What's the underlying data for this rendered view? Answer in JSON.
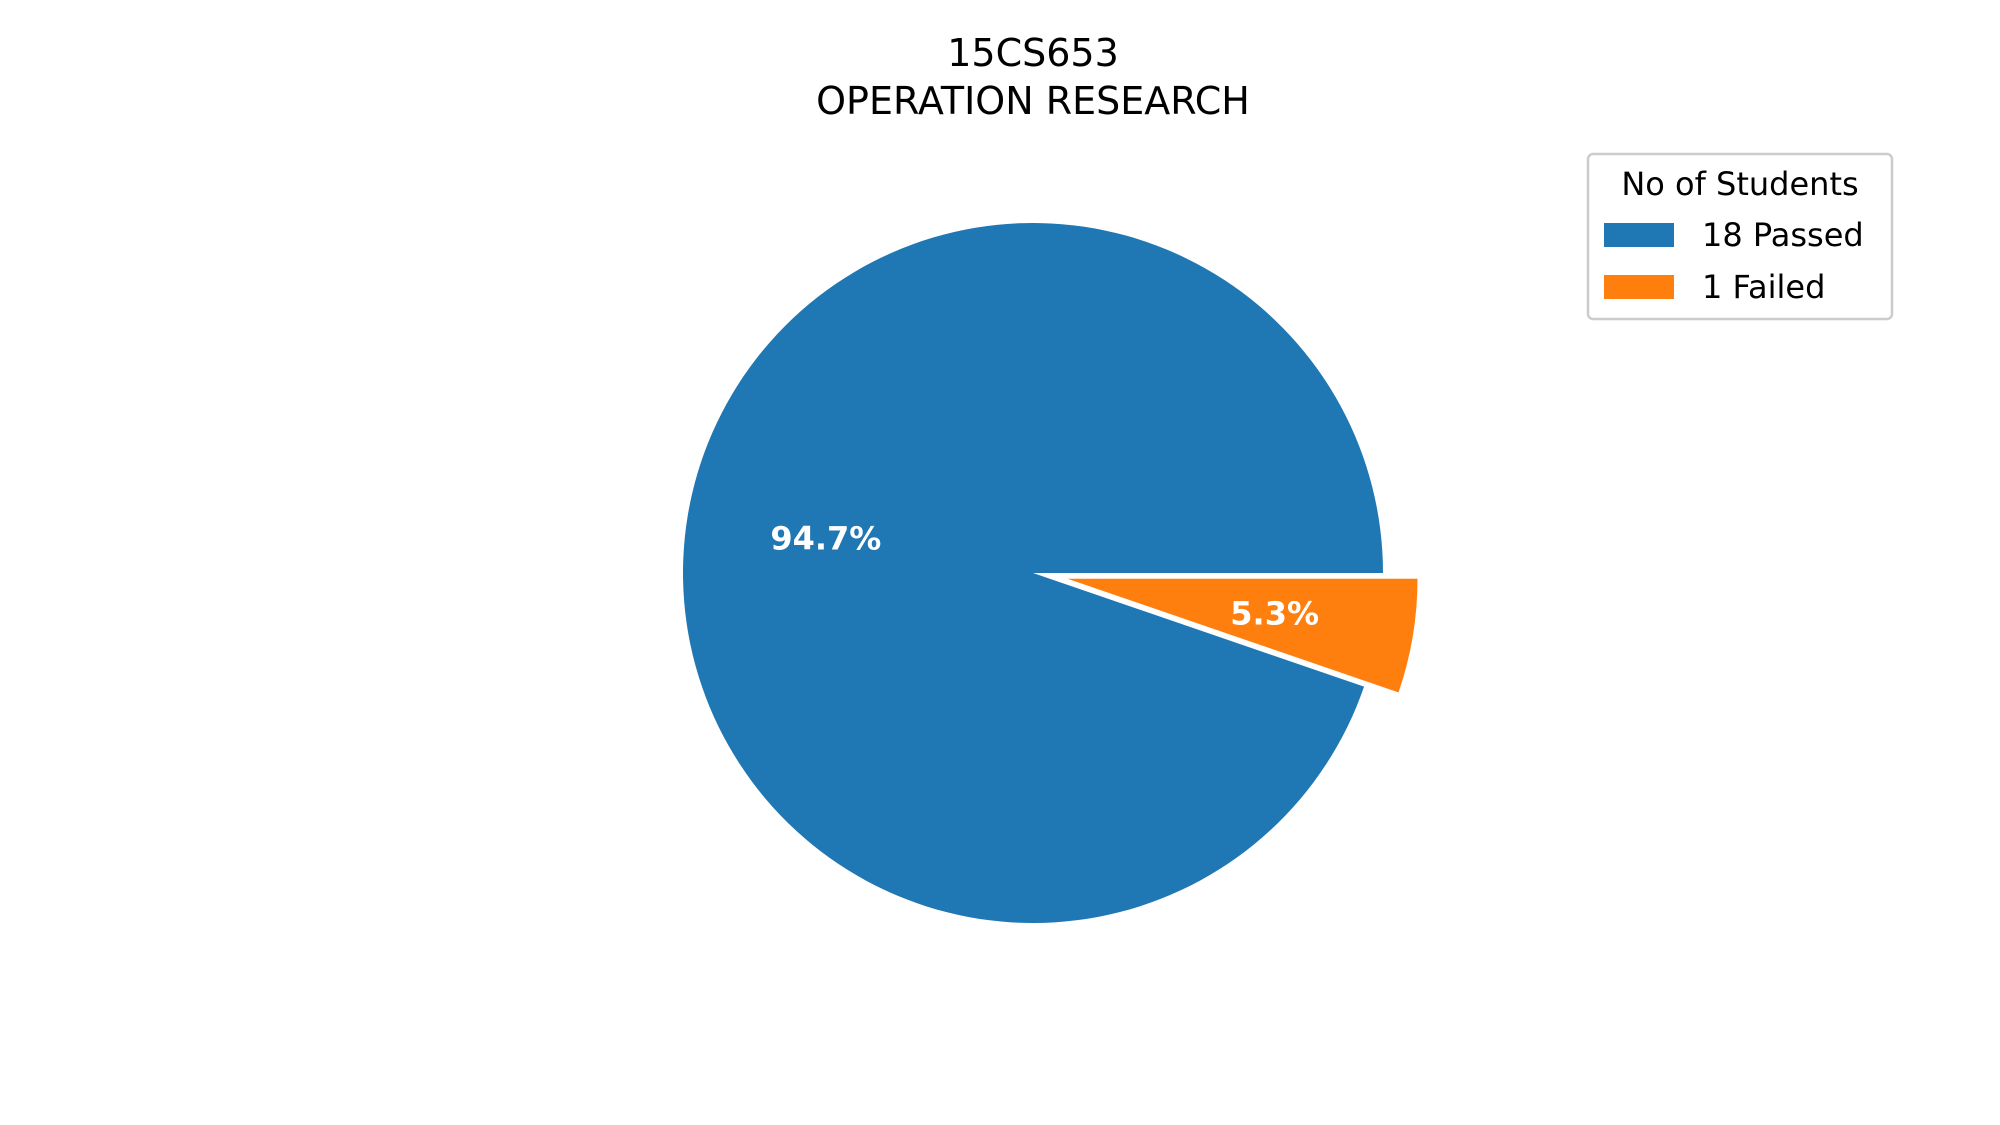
{
  "chart_data": {
    "type": "pie",
    "title": "15CS653",
    "subtitle": "OPERATION RESEARCH",
    "legend": {
      "title": "No of Students",
      "placement": "top-right"
    },
    "slices": [
      {
        "label": "18 Passed",
        "value": 18,
        "percent_label": "94.7%",
        "color": "#1f77b4",
        "exploded": false
      },
      {
        "label": "1 Failed",
        "value": 1,
        "percent_label": "5.3%",
        "color": "#ff7f0e",
        "exploded": true
      }
    ]
  }
}
